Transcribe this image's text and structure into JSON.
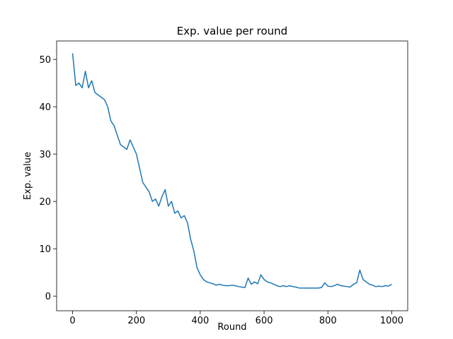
{
  "chart_data": {
    "type": "line",
    "title": "Exp. value per round",
    "x_label": "Round",
    "y_label": "Exp. value",
    "x": [
      0,
      10,
      20,
      30,
      40,
      50,
      60,
      70,
      80,
      90,
      100,
      110,
      120,
      130,
      140,
      150,
      160,
      170,
      180,
      190,
      200,
      210,
      220,
      230,
      240,
      250,
      260,
      270,
      280,
      290,
      300,
      310,
      320,
      330,
      340,
      350,
      360,
      370,
      380,
      390,
      400,
      410,
      420,
      430,
      440,
      450,
      460,
      470,
      480,
      490,
      500,
      510,
      520,
      530,
      540,
      550,
      560,
      570,
      580,
      590,
      600,
      610,
      620,
      630,
      640,
      650,
      660,
      670,
      680,
      690,
      700,
      710,
      720,
      730,
      740,
      750,
      760,
      770,
      780,
      790,
      800,
      810,
      820,
      830,
      840,
      850,
      860,
      870,
      880,
      890,
      900,
      910,
      920,
      930,
      940,
      950,
      960,
      970,
      980,
      990,
      1000
    ],
    "series": [
      {
        "name": "Exp. value",
        "color": "#1f77b4",
        "values": [
          51.3,
          44.5,
          45,
          44,
          47.5,
          44,
          45.5,
          43,
          42.5,
          42,
          41.5,
          40,
          37,
          36,
          34,
          32,
          31.5,
          31,
          33,
          31.5,
          30,
          27,
          24,
          23,
          22,
          20,
          20.5,
          19,
          21,
          22.5,
          19,
          20,
          17.5,
          18,
          16.5,
          17,
          15.5,
          12,
          9.5,
          6,
          4.5,
          3.5,
          3,
          2.8,
          2.6,
          2.3,
          2.5,
          2.3,
          2.2,
          2.2,
          2.3,
          2.2,
          2,
          1.9,
          1.8,
          3.8,
          2.5,
          3,
          2.6,
          4.5,
          3.5,
          3,
          2.8,
          2.5,
          2.2,
          2,
          2.2,
          2,
          2.2,
          2,
          1.9,
          1.7,
          1.7,
          1.7,
          1.7,
          1.7,
          1.7,
          1.7,
          1.8,
          2.8,
          2.1,
          2,
          2.2,
          2.5,
          2.2,
          2.1,
          2,
          1.9,
          2.5,
          2.8,
          5.5,
          3.5,
          3,
          2.5,
          2.3,
          2,
          2.1,
          2,
          2.2,
          2.1,
          2.5
        ]
      }
    ],
    "xlim": [
      -50,
      1050
    ],
    "ylim": [
      -3.1,
      53.9
    ],
    "xticks": [
      0,
      200,
      400,
      600,
      800,
      1000
    ],
    "yticks": [
      0,
      10,
      20,
      30,
      40,
      50
    ],
    "grid": false
  }
}
